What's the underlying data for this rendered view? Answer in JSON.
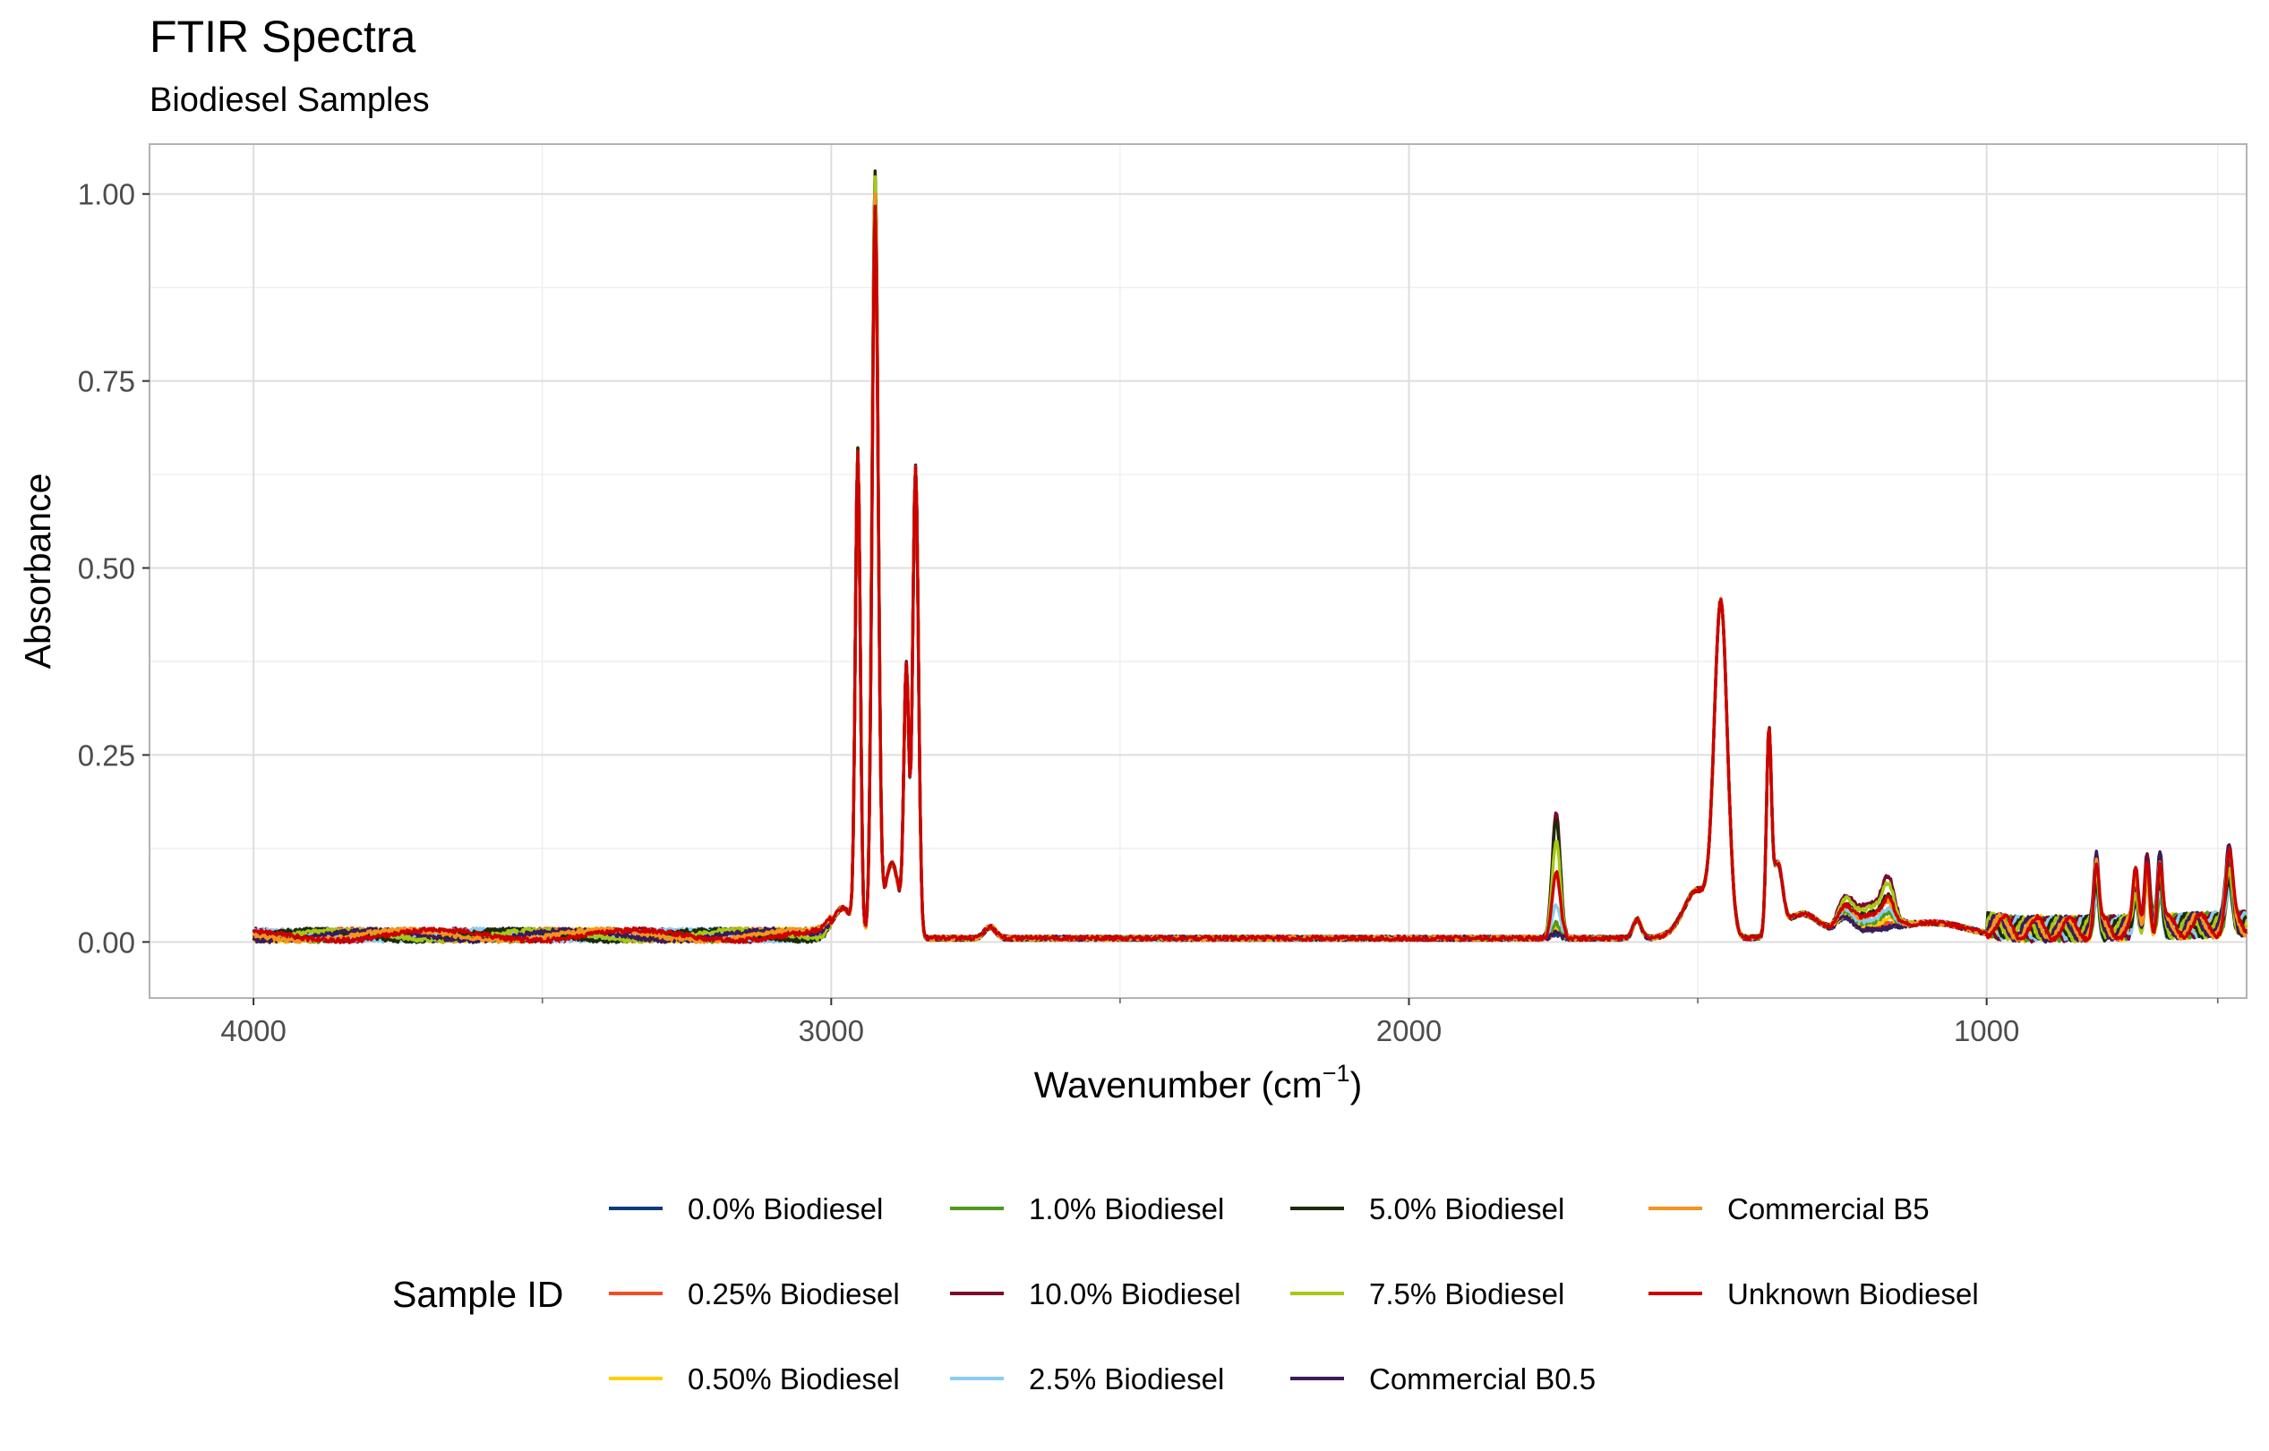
{
  "chart_data": {
    "type": "line",
    "title": "FTIR Spectra",
    "subtitle": "Biodiesel Samples",
    "xlabel_main": "Wavenumber (cm",
    "xlabel_sup": "−1",
    "xlabel_close": ")",
    "ylabel": "Absorbance",
    "x_reversed": true,
    "xlim": [
      4180,
      550
    ],
    "ylim": [
      -0.075,
      1.0667
    ],
    "x_ticks": [
      {
        "value": 4000,
        "label": "4000"
      },
      {
        "value": 3000,
        "label": "3000"
      },
      {
        "value": 2000,
        "label": "2000"
      },
      {
        "value": 1000,
        "label": "1000"
      }
    ],
    "x_minor_ticks": [
      3500,
      2500,
      1500,
      600
    ],
    "y_ticks": [
      {
        "value": 0.0,
        "label": "0.00"
      },
      {
        "value": 0.25,
        "label": "0.25"
      },
      {
        "value": 0.5,
        "label": "0.50"
      },
      {
        "value": 0.75,
        "label": "0.75"
      },
      {
        "value": 1.0,
        "label": "1.00"
      }
    ],
    "y_minor_ticks": [
      0.125,
      0.375,
      0.625,
      0.875
    ],
    "grid": true,
    "legend": {
      "title": "Sample ID",
      "position": "bottom"
    },
    "series": [
      {
        "name": "0.0% Biodiesel",
        "color": "#0a3b7d",
        "c1745": 0.005,
        "cmid": 0.0,
        "peak2924": 1.0,
        "peak1020": 0.0,
        "fp": 0.12
      },
      {
        "name": "0.25% Biodiesel",
        "color": "#f04f23",
        "c1745": 0.008,
        "cmid": 0.003,
        "peak2924": 0.985,
        "peak1020": 0.0,
        "fp": 0.11
      },
      {
        "name": "0.50% Biodiesel",
        "color": "#ffcf00",
        "c1745": 0.012,
        "cmid": 0.006,
        "peak2924": 0.975,
        "peak1020": 0.0,
        "fp": 0.1
      },
      {
        "name": "1.0% Biodiesel",
        "color": "#4e9a1e",
        "c1745": 0.02,
        "cmid": 0.01,
        "peak2924": 1.02,
        "peak1020": 0.0,
        "fp": 0.1
      },
      {
        "name": "10.0% Biodiesel",
        "color": "#7a0a2b",
        "c1745": 0.17,
        "cmid": 0.035,
        "peak2924": 0.99,
        "peak1020": 0.0,
        "fp": 0.13
      },
      {
        "name": "2.5% Biodiesel",
        "color": "#89cdf3",
        "c1745": 0.045,
        "cmid": 0.013,
        "peak2924": 0.98,
        "peak1020": 0.0,
        "fp": 0.1
      },
      {
        "name": "5.0% Biodiesel",
        "color": "#1c2b06",
        "c1745": 0.16,
        "cmid": 0.022,
        "peak2924": 1.02,
        "peak1020": 0.0,
        "fp": 0.11
      },
      {
        "name": "7.5% Biodiesel",
        "color": "#a7c814",
        "c1745": 0.13,
        "cmid": 0.03,
        "peak2924": 1.01,
        "peak1020": 0.0,
        "fp": 0.12
      },
      {
        "name": "Commercial B0.5",
        "color": "#3c1a5b",
        "c1745": 0.01,
        "cmid": 0.0,
        "peak2924": 0.98,
        "peak1020": 0.0,
        "fp": 0.16
      },
      {
        "name": "Commercial B5",
        "color": "#f7931e",
        "c1745": 0.085,
        "cmid": 0.018,
        "peak2924": 0.985,
        "peak1020": 0.0,
        "fp": 0.14
      },
      {
        "name": "Unknown Biodiesel",
        "color": "#cc0000",
        "c1745": 0.09,
        "cmid": 0.02,
        "peak2924": 0.97,
        "peak1020": 0.0,
        "fp": 0.15
      }
    ],
    "baseline_features": [
      {
        "center": 2954,
        "height": 0.63,
        "width": 6
      },
      {
        "center": 2924,
        "height": 1.0,
        "width": 8
      },
      {
        "center": 2870,
        "height": 0.34,
        "width": 6
      },
      {
        "center": 2854,
        "height": 0.62,
        "width": 7
      },
      {
        "center": 2730,
        "height": 0.01,
        "width": 25
      },
      {
        "center": 1377,
        "height": 0.02,
        "width": 10
      },
      {
        "center": 1460,
        "height": 0.44,
        "width": 18
      },
      {
        "center": 1377,
        "height": 0.26,
        "width": 6
      },
      {
        "center": 1365,
        "height": 0.08,
        "width": 10
      }
    ]
  }
}
